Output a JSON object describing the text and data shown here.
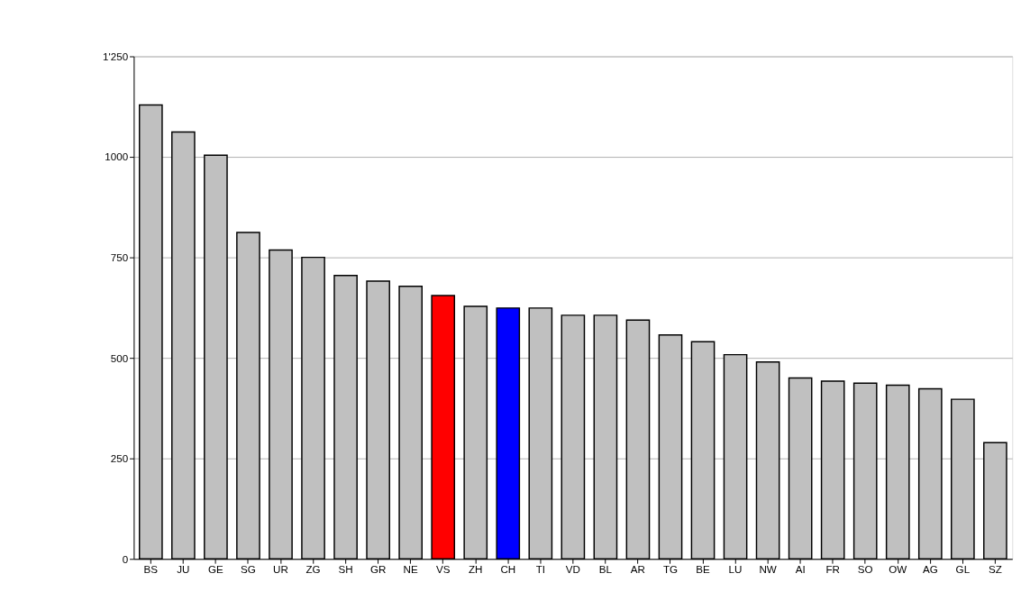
{
  "chart_data": {
    "type": "bar",
    "categories": [
      "BS",
      "JU",
      "GE",
      "SG",
      "UR",
      "ZG",
      "SH",
      "GR",
      "NE",
      "VS",
      "ZH",
      "CH",
      "TI",
      "VD",
      "BL",
      "AR",
      "TG",
      "BE",
      "LU",
      "NW",
      "AI",
      "FR",
      "SO",
      "OW",
      "AG",
      "GL",
      "SZ"
    ],
    "values": [
      1129,
      1062,
      1004,
      812,
      768,
      750,
      705,
      691,
      678,
      655,
      628,
      624,
      624,
      606,
      606,
      594,
      557,
      540,
      508,
      490,
      450,
      442,
      437,
      432,
      423,
      397,
      289
    ],
    "colors": [
      "#c0c0c0",
      "#c0c0c0",
      "#c0c0c0",
      "#c0c0c0",
      "#c0c0c0",
      "#c0c0c0",
      "#c0c0c0",
      "#c0c0c0",
      "#c0c0c0",
      "#ff0000",
      "#c0c0c0",
      "#0000ff",
      "#c0c0c0",
      "#c0c0c0",
      "#c0c0c0",
      "#c0c0c0",
      "#c0c0c0",
      "#c0c0c0",
      "#c0c0c0",
      "#c0c0c0",
      "#c0c0c0",
      "#c0c0c0",
      "#c0c0c0",
      "#c0c0c0",
      "#c0c0c0",
      "#c0c0c0",
      "#c0c0c0"
    ],
    "ylim": [
      0,
      1250
    ],
    "yticks": [
      0,
      250,
      500,
      750,
      1000,
      {
        "value": 1250,
        "label": "1'250"
      }
    ],
    "grid": "y"
  }
}
